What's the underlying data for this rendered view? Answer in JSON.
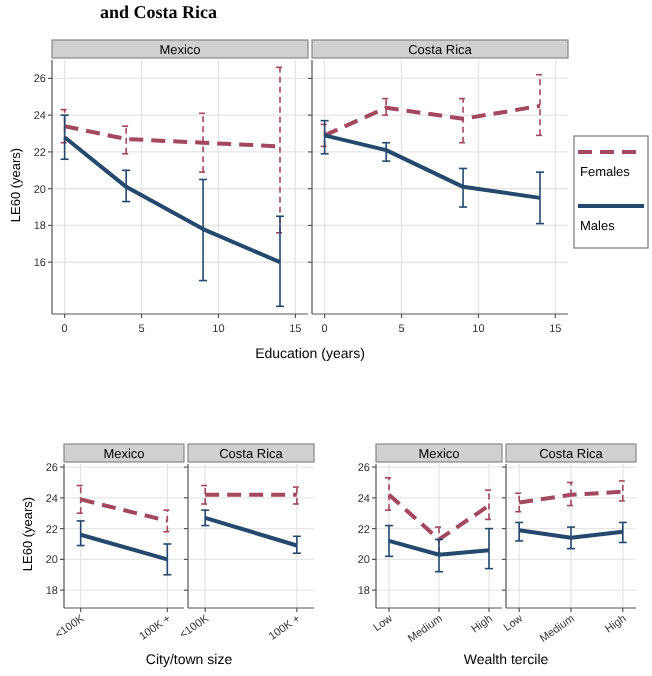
{
  "chart_data": [
    {
      "type": "line",
      "title": "Mexico",
      "annotations": [
        "and Costa Rica"
      ],
      "xlabel": "Education (years)",
      "ylabel": "LE60 (years)",
      "x": [
        0,
        4,
        9,
        14
      ],
      "xlim": [
        -0.3,
        15.3
      ],
      "xticks": [
        0,
        5,
        10,
        15
      ],
      "ylim": [
        13.4,
        27
      ],
      "yticks": [
        16,
        18,
        20,
        22,
        24,
        26
      ],
      "grid": true,
      "series": [
        {
          "color": "#a3485e",
          "line_style": "dashed",
          "values": [
            23.4,
            22.7,
            22.5,
            22.3
          ],
          "errors": [
            [
              22.5,
              24.3
            ],
            [
              21.9,
              23.4
            ],
            [
              20.9,
              24.1
            ],
            [
              17.6,
              26.6
            ]
          ]
        },
        {
          "color": "#24486e",
          "line_style": "solid",
          "values": [
            22.8,
            20.1,
            17.8,
            16.0
          ],
          "errors": [
            [
              21.6,
              24.0
            ],
            [
              19.3,
              21.0
            ],
            [
              15.0,
              20.5
            ],
            [
              13.6,
              18.5
            ]
          ]
        }
      ]
    },
    {
      "type": "line",
      "title": "Costa Rica",
      "legend": "right",
      "x": [
        0,
        4,
        9,
        14
      ],
      "xlim": [
        -0.3,
        15.3
      ],
      "xticks": [
        0,
        5,
        10,
        15
      ],
      "ylim": [
        13.4,
        27
      ],
      "yticks": [
        16,
        18,
        20,
        22,
        24,
        26
      ],
      "tick_labels": "x",
      "grid": true,
      "series": [
        {
          "name": "Females",
          "color": "#a3485e",
          "line_style": "dashed",
          "values": [
            22.9,
            24.4,
            23.8,
            24.5
          ],
          "errors": [
            [
              22.3,
              23.5
            ],
            [
              24.0,
              24.9
            ],
            [
              22.5,
              24.9
            ],
            [
              22.9,
              26.2
            ]
          ]
        },
        {
          "name": "Males",
          "color": "#24486e",
          "line_style": "solid",
          "values": [
            22.9,
            22.1,
            20.1,
            19.5
          ],
          "errors": [
            [
              21.9,
              23.7
            ],
            [
              21.5,
              22.5
            ],
            [
              19.0,
              21.1
            ],
            [
              18.1,
              20.9
            ]
          ]
        }
      ]
    },
    {
      "type": "line",
      "title": "Mexico",
      "xlabel": "City/town size",
      "ylabel": "LE60 (years)",
      "categories": [
        "<100K",
        "100K +"
      ],
      "ylim": [
        17.1,
        26.2
      ],
      "yticks": [
        18,
        20,
        22,
        24,
        26
      ],
      "grid": true,
      "series": [
        {
          "color": "#a3485e",
          "line_style": "dashed",
          "values": [
            23.9,
            22.5
          ],
          "errors": [
            [
              23.0,
              24.8
            ],
            [
              21.8,
              23.2
            ]
          ]
        },
        {
          "color": "#24486e",
          "line_style": "solid",
          "values": [
            21.6,
            20.0
          ],
          "errors": [
            [
              20.9,
              22.5
            ],
            [
              19.0,
              21.0
            ]
          ]
        }
      ]
    },
    {
      "type": "line",
      "title": "Costa Rica",
      "categories": [
        "<100K",
        "100K +"
      ],
      "ylim": [
        17.1,
        26.2
      ],
      "yticks": [
        18,
        20,
        22,
        24,
        26
      ],
      "tick_labels": "x",
      "grid": true,
      "series": [
        {
          "color": "#a3485e",
          "line_style": "dashed",
          "values": [
            24.2,
            24.2
          ],
          "errors": [
            [
              23.6,
              24.8
            ],
            [
              23.6,
              24.7
            ]
          ]
        },
        {
          "color": "#24486e",
          "line_style": "solid",
          "values": [
            22.7,
            20.9
          ],
          "errors": [
            [
              22.2,
              23.2
            ],
            [
              20.4,
              21.5
            ]
          ]
        }
      ]
    },
    {
      "type": "line",
      "title": "Mexico",
      "xlabel": "Wealth tercile",
      "categories": [
        "Low",
        "Medium",
        "High"
      ],
      "ylim": [
        17.1,
        26.2
      ],
      "yticks": [
        18,
        20,
        22,
        24,
        26
      ],
      "grid": true,
      "series": [
        {
          "color": "#a3485e",
          "line_style": "dashed",
          "values": [
            24.2,
            21.3,
            23.5
          ],
          "errors": [
            [
              23.2,
              25.3
            ],
            [
              20.4,
              22.1
            ],
            [
              22.6,
              24.5
            ]
          ]
        },
        {
          "color": "#24486e",
          "line_style": "solid",
          "values": [
            21.2,
            20.3,
            20.6
          ],
          "errors": [
            [
              20.2,
              22.2
            ],
            [
              19.2,
              21.3
            ],
            [
              19.4,
              22.0
            ]
          ]
        }
      ]
    },
    {
      "type": "line",
      "title": "Costa Rica",
      "categories": [
        "Low",
        "Medium",
        "High"
      ],
      "ylim": [
        17.1,
        26.2
      ],
      "yticks": [
        18,
        20,
        22,
        24,
        26
      ],
      "tick_labels": "x",
      "grid": true,
      "series": [
        {
          "color": "#a3485e",
          "line_style": "dashed",
          "values": [
            23.7,
            24.2,
            24.4
          ],
          "errors": [
            [
              23.1,
              24.3
            ],
            [
              23.5,
              25.0
            ],
            [
              23.8,
              25.1
            ]
          ]
        },
        {
          "color": "#24486e",
          "line_style": "solid",
          "values": [
            21.9,
            21.4,
            21.8
          ],
          "errors": [
            [
              21.2,
              22.4
            ],
            [
              20.7,
              22.1
            ],
            [
              21.1,
              22.4
            ]
          ]
        }
      ]
    }
  ]
}
